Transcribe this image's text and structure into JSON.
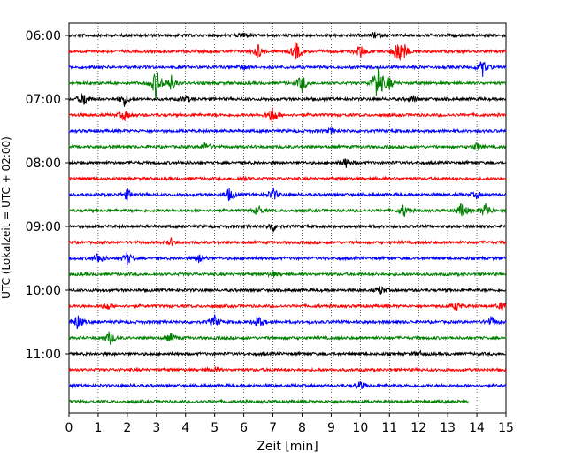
{
  "chart_data": {
    "type": "line",
    "xlabel": "Zeit  [min]",
    "ylabel": "UTC (Lokalzeit = UTC + 02:00)",
    "xlim": [
      0,
      15
    ],
    "x_ticks": [
      "0",
      "1",
      "2",
      "3",
      "4",
      "5",
      "6",
      "7",
      "8",
      "9",
      "10",
      "11",
      "12",
      "13",
      "14",
      "15"
    ],
    "y_tick_labels": [
      "06:00",
      "07:00",
      "08:00",
      "09:00",
      "10:00",
      "11:00"
    ],
    "grid": "vertical dotted",
    "trace_colors": [
      "#000000",
      "#ff0000",
      "#0000ff",
      "#008000"
    ],
    "traces": [
      {
        "start": "06:00",
        "color": "#000000",
        "end_min": 15,
        "events": [
          [
            6.0,
            0.6
          ],
          [
            10.5,
            0.5
          ]
        ]
      },
      {
        "start": "06:15",
        "color": "#ff0000",
        "end_min": 15,
        "events": [
          [
            6.5,
            1.4
          ],
          [
            7.8,
            2.0
          ],
          [
            10.0,
            1.4
          ],
          [
            11.3,
            2.6
          ],
          [
            11.5,
            1.0
          ]
        ]
      },
      {
        "start": "06:30",
        "color": "#0000ff",
        "end_min": 15,
        "events": [
          [
            6.0,
            0.5
          ],
          [
            14.2,
            1.6
          ]
        ]
      },
      {
        "start": "06:45",
        "color": "#008000",
        "end_min": 15,
        "events": [
          [
            3.0,
            3.2
          ],
          [
            3.5,
            1.6
          ],
          [
            8.0,
            1.8
          ],
          [
            10.6,
            4.5
          ],
          [
            11.0,
            1.2
          ]
        ]
      },
      {
        "start": "07:00",
        "color": "#000000",
        "end_min": 15,
        "events": [
          [
            0.5,
            1.5
          ],
          [
            1.9,
            1.2
          ],
          [
            4.0,
            0.6
          ],
          [
            11.8,
            0.6
          ]
        ]
      },
      {
        "start": "07:15",
        "color": "#ff0000",
        "end_min": 15,
        "events": [
          [
            1.9,
            1.0
          ],
          [
            7.0,
            1.8
          ]
        ]
      },
      {
        "start": "07:30",
        "color": "#0000ff",
        "end_min": 15,
        "events": [
          [
            9.0,
            0.5
          ]
        ]
      },
      {
        "start": "07:45",
        "color": "#008000",
        "end_min": 15,
        "events": [
          [
            4.7,
            0.9
          ],
          [
            14.0,
            0.8
          ]
        ]
      },
      {
        "start": "08:00",
        "color": "#000000",
        "end_min": 15,
        "events": [
          [
            9.5,
            0.9
          ]
        ]
      },
      {
        "start": "08:15",
        "color": "#ff0000",
        "end_min": 15,
        "events": [
          [
            6.0,
            0.4
          ]
        ]
      },
      {
        "start": "08:30",
        "color": "#0000ff",
        "end_min": 15,
        "events": [
          [
            2.0,
            1.0
          ],
          [
            5.5,
            1.2
          ],
          [
            7.0,
            1.3
          ],
          [
            14.0,
            0.6
          ]
        ]
      },
      {
        "start": "08:45",
        "color": "#008000",
        "end_min": 15,
        "events": [
          [
            6.5,
            1.0
          ],
          [
            11.5,
            1.2
          ],
          [
            13.5,
            1.6
          ],
          [
            14.3,
            1.6
          ]
        ]
      },
      {
        "start": "09:00",
        "color": "#000000",
        "end_min": 15,
        "events": [
          [
            7.0,
            1.0
          ]
        ]
      },
      {
        "start": "09:15",
        "color": "#ff0000",
        "end_min": 15,
        "events": [
          [
            3.5,
            0.6
          ]
        ]
      },
      {
        "start": "09:30",
        "color": "#0000ff",
        "end_min": 15,
        "events": [
          [
            1.0,
            1.2
          ],
          [
            2.0,
            1.2
          ],
          [
            4.5,
            1.0
          ]
        ]
      },
      {
        "start": "09:45",
        "color": "#008000",
        "end_min": 15,
        "events": [
          [
            7.0,
            0.5
          ]
        ]
      },
      {
        "start": "10:00",
        "color": "#000000",
        "end_min": 15,
        "events": [
          [
            10.7,
            0.8
          ]
        ]
      },
      {
        "start": "10:15",
        "color": "#ff0000",
        "end_min": 15,
        "events": [
          [
            1.3,
            0.8
          ],
          [
            13.3,
            0.8
          ],
          [
            14.9,
            1.0
          ]
        ]
      },
      {
        "start": "10:30",
        "color": "#0000ff",
        "end_min": 15,
        "events": [
          [
            0.3,
            1.4
          ],
          [
            5.0,
            1.2
          ],
          [
            6.5,
            1.2
          ],
          [
            14.5,
            1.0
          ]
        ]
      },
      {
        "start": "10:45",
        "color": "#008000",
        "end_min": 15,
        "events": [
          [
            1.4,
            1.4
          ],
          [
            3.5,
            0.9
          ]
        ]
      },
      {
        "start": "11:00",
        "color": "#000000",
        "end_min": 15,
        "events": [
          [
            12.0,
            0.5
          ]
        ]
      },
      {
        "start": "11:15",
        "color": "#ff0000",
        "end_min": 15,
        "events": [
          [
            5.0,
            0.5
          ]
        ]
      },
      {
        "start": "11:30",
        "color": "#0000ff",
        "end_min": 15,
        "events": [
          [
            10.0,
            0.8
          ]
        ]
      },
      {
        "start": "11:45",
        "color": "#008000",
        "end_min": 13.7,
        "events": []
      }
    ]
  }
}
